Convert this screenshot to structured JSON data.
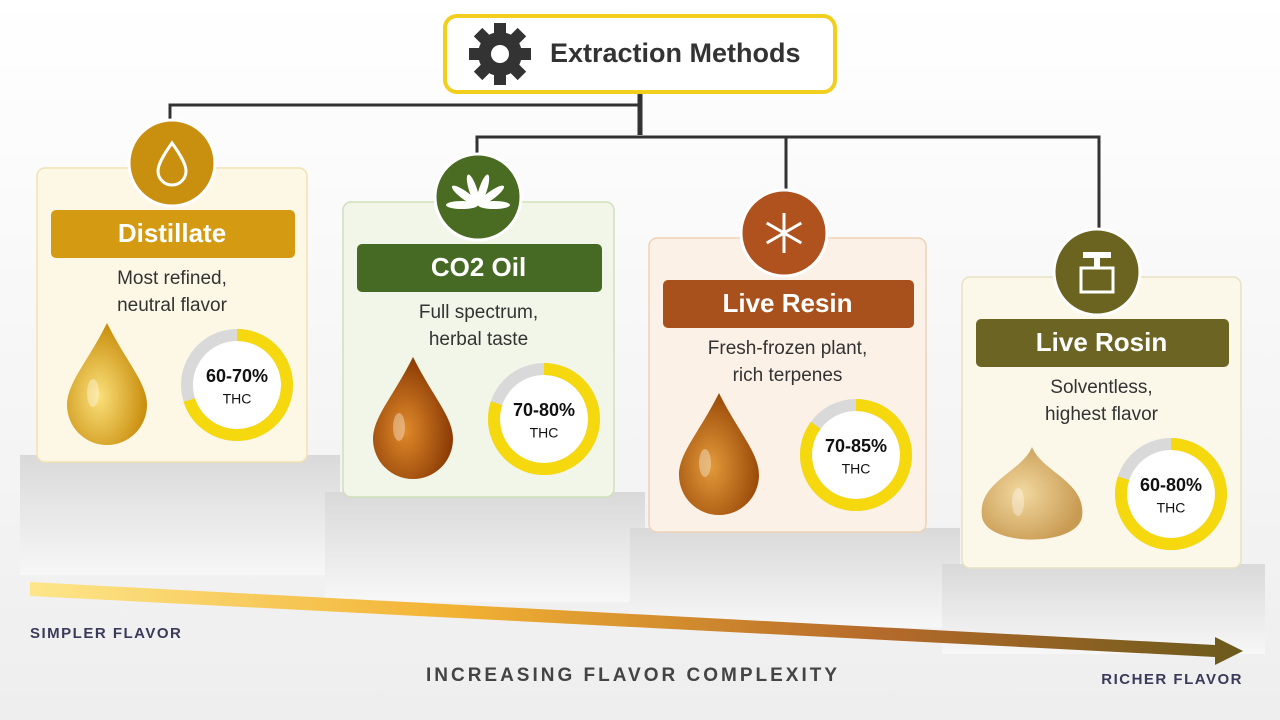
{
  "header": {
    "title": "Extraction Methods"
  },
  "methods": [
    {
      "name": "Distillate",
      "description": [
        "Most refined,",
        "neutral flavor"
      ],
      "thc_label": "60-70%",
      "thc_range": [
        60,
        70
      ],
      "thc_unit": "THC"
    },
    {
      "name": "CO2 Oil",
      "description": [
        "Full spectrum,",
        "herbal taste"
      ],
      "thc_label": "70-80%",
      "thc_range": [
        70,
        80
      ],
      "thc_unit": "THC"
    },
    {
      "name": "Live Resin",
      "description": [
        "Fresh-frozen plant,",
        "rich terpenes"
      ],
      "thc_label": "70-85%",
      "thc_range": [
        70,
        85
      ],
      "thc_unit": "THC"
    },
    {
      "name": "Live Rosin",
      "description": [
        "Solventless,",
        "highest flavor"
      ],
      "thc_label": "60-80%",
      "thc_range": [
        60,
        80
      ],
      "thc_unit": "THC"
    }
  ],
  "axis": {
    "start_label": "SIMPLER FLAVOR",
    "title": "INCREASING FLAVOR COMPLEXITY",
    "end_label": "RICHER FLAVOR"
  }
}
